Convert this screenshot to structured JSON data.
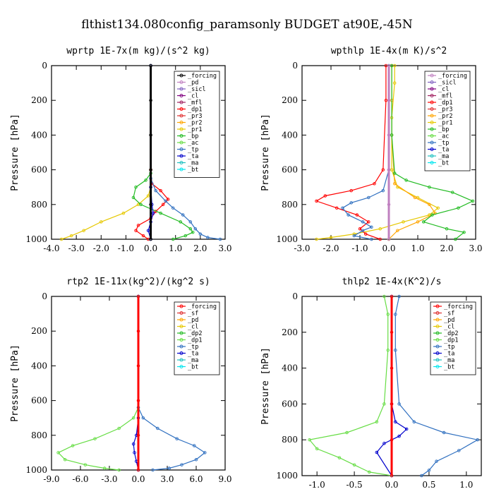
{
  "figure_title": "flthist134.080config_paramsonly  BUDGET at90E,-45N",
  "chart_data": [
    {
      "type": "line",
      "title": "wprtp  1E-7x(m kg)/(s^2 kg)",
      "ylabel": "Pressure [hPa]",
      "xlim": [
        -4.0,
        3.0
      ],
      "ylim": [
        1000,
        0
      ],
      "xticks": [
        "-4.0",
        "-3.0",
        "-2.0",
        "-1.0",
        "0.0",
        "1.0",
        "2.0",
        "3.0"
      ],
      "xtick_values": [
        -4,
        -3,
        -2,
        -1,
        0,
        1,
        2,
        3
      ],
      "yticks": [
        "0",
        "200",
        "400",
        "600",
        "800",
        "1000"
      ],
      "ytick_values": [
        0,
        200,
        400,
        600,
        800,
        1000
      ],
      "legend_position": "top-right",
      "legend": [
        {
          "name": "_forcing",
          "color": "#000000"
        },
        {
          "name": "_pd",
          "color": "#c080c0"
        },
        {
          "name": "_sicl",
          "color": "#8060c0"
        },
        {
          "name": "_cl",
          "color": "#800080"
        },
        {
          "name": "_mfl",
          "color": "#a02060"
        },
        {
          "name": "_dp1",
          "color": "#ff0000"
        },
        {
          "name": "_pr3",
          "color": "#e03030"
        },
        {
          "name": "_pr2",
          "color": "#ffa500"
        },
        {
          "name": "_pr1",
          "color": "#e6c800"
        },
        {
          "name": "_bp",
          "color": "#22bb22"
        },
        {
          "name": "_ac",
          "color": "#66dd44"
        },
        {
          "name": "_tp",
          "color": "#3070c0"
        },
        {
          "name": "_ta",
          "color": "#0000cc"
        },
        {
          "name": "_ma",
          "color": "#20c0c0"
        },
        {
          "name": "_bt",
          "color": "#00e5ee"
        }
      ],
      "series": [
        {
          "name": "_pr1",
          "color": "#e6c800",
          "x": [
            0,
            0,
            0,
            -0.1,
            -0.5,
            -1.1,
            -2.0,
            -2.7,
            -3.2,
            -3.6
          ],
          "y": [
            0,
            600,
            700,
            750,
            800,
            850,
            900,
            950,
            980,
            1000
          ]
        },
        {
          "name": "_dp1",
          "color": "#ff0000",
          "x": [
            0,
            0,
            0.05,
            0.4,
            0.7,
            0.5,
            0.2,
            0,
            -0.5,
            -0.6,
            -0.3,
            -0.1
          ],
          "y": [
            0,
            600,
            680,
            720,
            770,
            800,
            840,
            880,
            920,
            950,
            980,
            1000
          ]
        },
        {
          "name": "_bp",
          "color": "#22bb22",
          "x": [
            0,
            0,
            -0.2,
            -0.6,
            -0.7,
            -0.4,
            0.4,
            1.2,
            1.6,
            1.7,
            1.4,
            0.9
          ],
          "y": [
            0,
            620,
            660,
            700,
            760,
            800,
            850,
            900,
            940,
            960,
            980,
            1000
          ]
        },
        {
          "name": "_tp",
          "color": "#3070c0",
          "x": [
            0,
            0,
            0.2,
            0.6,
            0.9,
            1.3,
            1.6,
            1.8,
            2.0,
            2.3,
            2.8
          ],
          "y": [
            0,
            650,
            720,
            780,
            820,
            860,
            900,
            940,
            970,
            990,
            1000
          ]
        },
        {
          "name": "_ta",
          "color": "#0000cc",
          "x": [
            0,
            0,
            0.05,
            0.1,
            0,
            -0.1,
            0
          ],
          "y": [
            0,
            700,
            800,
            850,
            900,
            950,
            1000
          ]
        },
        {
          "name": "_forcing",
          "color": "#000000",
          "x": [
            0,
            0,
            0,
            0,
            0,
            0
          ],
          "y": [
            0,
            200,
            400,
            600,
            800,
            1000
          ]
        }
      ]
    },
    {
      "type": "line",
      "title": "wpthlp  1E-4x(m K)/s^2",
      "ylabel": "Pressure [hPa]",
      "xlim": [
        -3.0,
        3.0
      ],
      "ylim": [
        1000,
        0
      ],
      "xticks": [
        "-3.0",
        "-2.0",
        "-1.0",
        "0.0",
        "1.0",
        "2.0",
        "3.0"
      ],
      "xtick_values": [
        -3,
        -2,
        -1,
        0,
        1,
        2,
        3
      ],
      "yticks": [
        "0",
        "200",
        "400",
        "600",
        "800",
        "1000"
      ],
      "ytick_values": [
        0,
        200,
        400,
        600,
        800,
        1000
      ],
      "legend_position": "top-right",
      "legend": [
        {
          "name": "_forcing",
          "color": "#c080c0"
        },
        {
          "name": "_sicl",
          "color": "#8060c0"
        },
        {
          "name": "_cl",
          "color": "#800080"
        },
        {
          "name": "_mfl",
          "color": "#a02060"
        },
        {
          "name": "_dp1",
          "color": "#ff0000"
        },
        {
          "name": "_pr3",
          "color": "#e03030"
        },
        {
          "name": "_pr2",
          "color": "#ffa500"
        },
        {
          "name": "_pr1",
          "color": "#e6c800"
        },
        {
          "name": "_bp",
          "color": "#22bb22"
        },
        {
          "name": "_ac",
          "color": "#66dd44"
        },
        {
          "name": "_tp",
          "color": "#3070c0"
        },
        {
          "name": "_ta",
          "color": "#0000cc"
        },
        {
          "name": "_ma",
          "color": "#20c0c0"
        },
        {
          "name": "_bt",
          "color": "#00e5ee"
        }
      ],
      "series": [
        {
          "name": "_pr1",
          "color": "#e6c800",
          "x": [
            0.2,
            0.2,
            0.1,
            0.1,
            0.3,
            1.0,
            1.7,
            1.4,
            0.5,
            -0.3,
            -1.2,
            -2.0,
            -2.5
          ],
          "y": [
            0,
            100,
            300,
            600,
            700,
            760,
            820,
            860,
            900,
            940,
            970,
            990,
            1000
          ]
        },
        {
          "name": "_pr2",
          "color": "#ffa500",
          "x": [
            0.1,
            0.1,
            0.1,
            0.2,
            0.9,
            1.4,
            1.6,
            1.0,
            0.3,
            0
          ],
          "y": [
            0,
            200,
            400,
            680,
            760,
            800,
            850,
            900,
            950,
            1000
          ]
        },
        {
          "name": "_bp",
          "color": "#22bb22",
          "x": [
            0.1,
            0.1,
            0.2,
            0.6,
            1.4,
            2.2,
            2.9,
            2.4,
            1.5,
            1.2,
            2.0,
            2.6,
            2.3
          ],
          "y": [
            0,
            400,
            620,
            660,
            700,
            730,
            780,
            820,
            860,
            900,
            940,
            960,
            1000
          ]
        },
        {
          "name": "_dp1",
          "color": "#ff0000",
          "x": [
            -0.1,
            -0.1,
            -0.2,
            -0.5,
            -1.3,
            -2.2,
            -2.5,
            -1.8,
            -1.1,
            -0.7,
            -1.0,
            -0.8,
            -0.3
          ],
          "y": [
            0,
            200,
            600,
            680,
            720,
            750,
            780,
            820,
            860,
            900,
            940,
            970,
            1000
          ]
        },
        {
          "name": "_tp",
          "color": "#3070c0",
          "x": [
            0,
            0,
            -0.2,
            -0.7,
            -1.3,
            -1.6,
            -1.4,
            -0.9,
            -0.6,
            -0.9,
            -1.2,
            -0.6
          ],
          "y": [
            0,
            600,
            720,
            760,
            790,
            820,
            860,
            900,
            930,
            950,
            980,
            1000
          ]
        },
        {
          "name": "_forcing",
          "color": "#c080c0",
          "x": [
            0,
            0,
            0,
            0,
            0,
            0
          ],
          "y": [
            0,
            200,
            400,
            600,
            800,
            1000
          ]
        }
      ]
    },
    {
      "type": "line",
      "title": "rtp2  1E-11x(kg^2)/(kg^2 s)",
      "ylabel": "Pressure [hPa]",
      "xlim": [
        -9.0,
        9.0
      ],
      "ylim": [
        1000,
        0
      ],
      "xticks": [
        "-9.0",
        "-6.0",
        "-3.0",
        "0.0",
        "3.0",
        "6.0",
        "9.0"
      ],
      "xtick_values": [
        -9,
        -6,
        -3,
        0,
        3,
        6,
        9
      ],
      "yticks": [
        "0",
        "200",
        "400",
        "600",
        "800",
        "1000"
      ],
      "ytick_values": [
        0,
        200,
        400,
        600,
        800,
        1000
      ],
      "legend_position": "top-right",
      "legend": [
        {
          "name": "_forcing",
          "color": "#ff0000"
        },
        {
          "name": "_sf",
          "color": "#e03030"
        },
        {
          "name": "_pd",
          "color": "#ffa500"
        },
        {
          "name": "_cl",
          "color": "#e6c800"
        },
        {
          "name": "_dp2",
          "color": "#22bb22"
        },
        {
          "name": "_dp1",
          "color": "#66dd44"
        },
        {
          "name": "_tp",
          "color": "#3070c0"
        },
        {
          "name": "_ta",
          "color": "#0000cc"
        },
        {
          "name": "_ma",
          "color": "#20c0c0"
        },
        {
          "name": "_bt",
          "color": "#00e5ee"
        }
      ],
      "series": [
        {
          "name": "_dp1",
          "color": "#66dd44",
          "x": [
            0,
            0,
            -0.5,
            -2.0,
            -4.5,
            -6.8,
            -8.3,
            -7.6,
            -5.5,
            -3.5,
            -2.0
          ],
          "y": [
            0,
            640,
            700,
            760,
            820,
            860,
            900,
            940,
            970,
            990,
            1000
          ]
        },
        {
          "name": "_tp",
          "color": "#3070c0",
          "x": [
            0,
            0,
            0.5,
            2.0,
            4.0,
            5.8,
            6.9,
            6.0,
            4.5,
            3.2,
            1.5
          ],
          "y": [
            0,
            640,
            700,
            760,
            820,
            860,
            900,
            940,
            970,
            990,
            1000
          ]
        },
        {
          "name": "_ta",
          "color": "#0000cc",
          "x": [
            0,
            0,
            -0.2,
            -0.5,
            -0.4,
            -0.2,
            0
          ],
          "y": [
            0,
            700,
            800,
            850,
            900,
            950,
            1000
          ]
        },
        {
          "name": "_forcing",
          "color": "#ff0000",
          "x": [
            0,
            0,
            0,
            0,
            0,
            0
          ],
          "y": [
            0,
            200,
            400,
            600,
            800,
            1000
          ]
        }
      ]
    },
    {
      "type": "line",
      "title": "thlp2  1E-4x(K^2)/s",
      "ylabel": "Pressure [hPa]",
      "xlim": [
        -1.2,
        1.2
      ],
      "ylim": [
        1000,
        0
      ],
      "xticks": [
        "-1.0",
        "-0.5",
        "0.0",
        "0.5",
        "1.0"
      ],
      "xtick_values": [
        -1.0,
        -0.5,
        0,
        0.5,
        1.0
      ],
      "yticks": [
        "0",
        "200",
        "400",
        "600",
        "800",
        "1000"
      ],
      "ytick_values": [
        0,
        200,
        400,
        600,
        800,
        1000
      ],
      "legend_position": "top-right",
      "legend": [
        {
          "name": "_forcing",
          "color": "#ff0000"
        },
        {
          "name": "_sf",
          "color": "#e03030"
        },
        {
          "name": "_pd",
          "color": "#ffa500"
        },
        {
          "name": "_cl",
          "color": "#e6c800"
        },
        {
          "name": "_dp2",
          "color": "#22bb22"
        },
        {
          "name": "_dp1",
          "color": "#66dd44"
        },
        {
          "name": "_tp",
          "color": "#3070c0"
        },
        {
          "name": "_ta",
          "color": "#0000cc"
        },
        {
          "name": "_ma",
          "color": "#20c0c0"
        },
        {
          "name": "_bt",
          "color": "#00e5ee"
        }
      ],
      "series": [
        {
          "name": "_dp1",
          "color": "#66dd44",
          "x": [
            -0.1,
            -0.05,
            -0.05,
            -0.1,
            -0.2,
            -0.6,
            -1.1,
            -1.0,
            -0.7,
            -0.5,
            -0.3,
            0
          ],
          "y": [
            0,
            100,
            300,
            600,
            700,
            760,
            800,
            850,
            900,
            940,
            980,
            1000
          ]
        },
        {
          "name": "_tp",
          "color": "#3070c0",
          "x": [
            0.1,
            0.05,
            0.05,
            0.1,
            0.3,
            0.7,
            1.15,
            0.9,
            0.6,
            0.5,
            0.4
          ],
          "y": [
            0,
            100,
            300,
            600,
            700,
            760,
            800,
            860,
            920,
            970,
            1000
          ]
        },
        {
          "name": "_ta",
          "color": "#0000cc",
          "x": [
            0,
            0,
            0.05,
            0.2,
            0.1,
            -0.1,
            -0.2,
            0
          ],
          "y": [
            0,
            600,
            700,
            740,
            780,
            820,
            870,
            1000
          ]
        },
        {
          "name": "_forcing",
          "color": "#ff0000",
          "x": [
            0,
            0,
            0,
            0,
            0,
            0
          ],
          "y": [
            0,
            200,
            400,
            600,
            800,
            1000
          ]
        }
      ]
    }
  ]
}
